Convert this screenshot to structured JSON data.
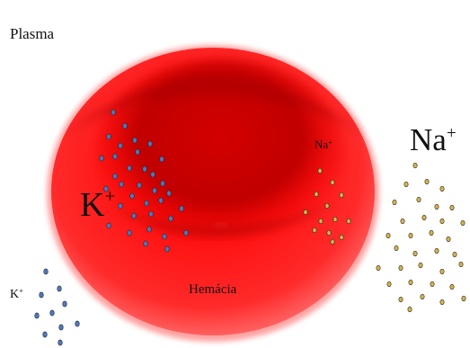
{
  "labels": {
    "plasma": "Plasma",
    "k_inside": "K",
    "k_inside_charge": "+",
    "na_inside": "Na",
    "na_inside_charge": "+",
    "na_outside": "Na",
    "na_outside_charge": "+",
    "k_outside": "K",
    "k_outside_charge": "+",
    "cell": "Hemácia"
  },
  "colors": {
    "background": "#ffffff",
    "cell_light": "#ff1a1a",
    "cell_core": "#e00000",
    "cell_dark": "#7a0000",
    "potassium_ion": "#4d78c0",
    "sodium_ion": "#d4b34a",
    "ion_outline": "#2b2b2b"
  }
}
